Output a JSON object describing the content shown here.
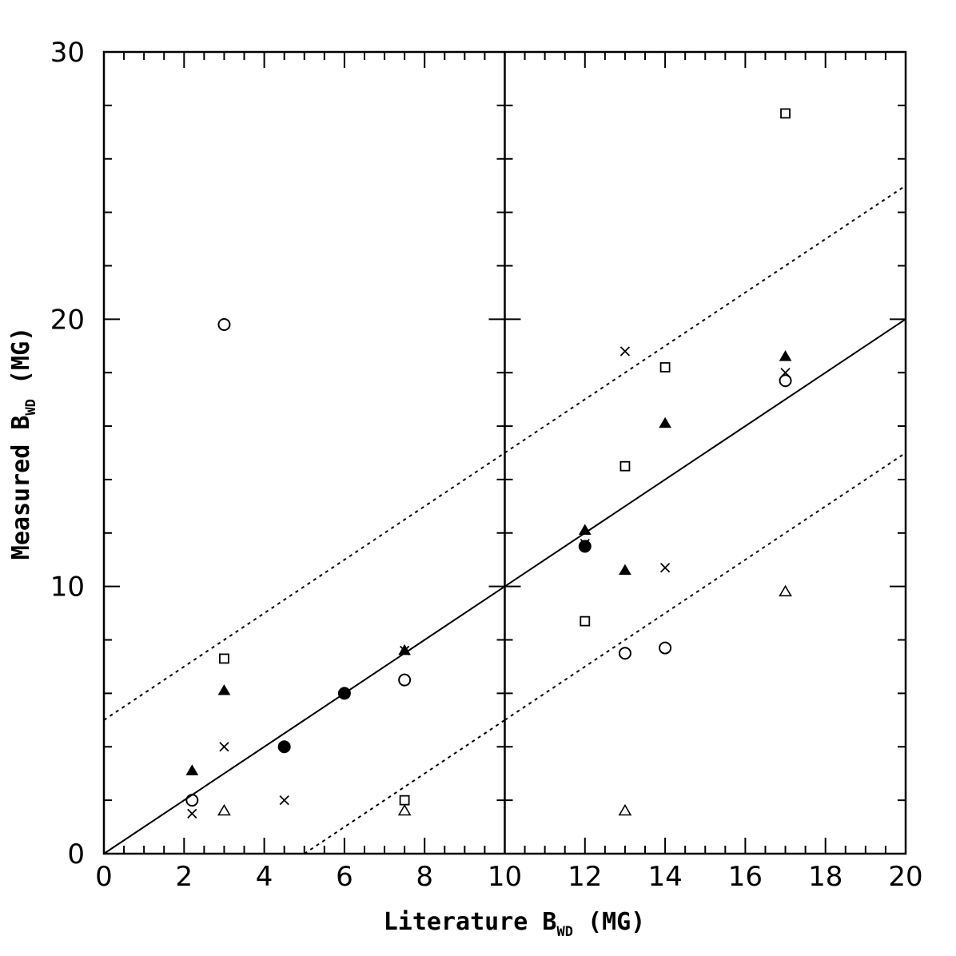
{
  "chart_data": {
    "type": "scatter",
    "xlabel": {
      "main": "Literature B",
      "sub": "WD",
      "unit": " (MG)"
    },
    "ylabel": {
      "main": "Measured B",
      "sub": "WD",
      "unit": " (MG)"
    },
    "xlim": [
      0,
      20
    ],
    "ylim": [
      0,
      30
    ],
    "panel_divider_x": 10,
    "x_ticks": [
      0,
      2,
      4,
      6,
      8,
      10,
      12,
      14,
      16,
      18,
      20
    ],
    "x_tick_labels": [
      "0",
      "2",
      "4",
      "6",
      "8",
      "10",
      "12",
      "14",
      "16",
      "18",
      "20"
    ],
    "y_ticks": [
      0,
      10,
      20,
      30
    ],
    "y_tick_labels": [
      "0",
      "10",
      "20",
      "30"
    ],
    "grid": false,
    "lines": [
      {
        "style": "solid",
        "points": [
          [
            0,
            0
          ],
          [
            20,
            20
          ]
        ]
      },
      {
        "style": "dotted",
        "points": [
          [
            0,
            5
          ],
          [
            10,
            15
          ]
        ]
      },
      {
        "style": "dotted",
        "points": [
          [
            5,
            0
          ],
          [
            10,
            5
          ]
        ]
      },
      {
        "style": "dotted",
        "points": [
          [
            10,
            15
          ],
          [
            20,
            25
          ]
        ]
      },
      {
        "style": "dotted",
        "points": [
          [
            10,
            5
          ],
          [
            20,
            15
          ]
        ]
      }
    ],
    "series": [
      {
        "marker": "open-circle",
        "points": [
          [
            2.2,
            2.0
          ],
          [
            3.0,
            19.8
          ],
          [
            7.5,
            6.5
          ],
          [
            13.0,
            7.5
          ],
          [
            14.0,
            7.7
          ],
          [
            17.0,
            17.7
          ]
        ]
      },
      {
        "marker": "filled-circle",
        "points": [
          [
            4.5,
            4.0
          ],
          [
            6.0,
            6.0
          ],
          [
            12.0,
            11.5
          ]
        ]
      },
      {
        "marker": "filled-triangle",
        "points": [
          [
            2.2,
            3.1
          ],
          [
            3.0,
            6.1
          ],
          [
            7.5,
            7.6
          ],
          [
            12.0,
            12.1
          ],
          [
            13.0,
            10.6
          ],
          [
            14.0,
            16.1
          ],
          [
            17.0,
            18.6
          ]
        ]
      },
      {
        "marker": "open-triangle",
        "points": [
          [
            3.0,
            1.6
          ],
          [
            7.5,
            1.6
          ],
          [
            13.0,
            1.6
          ],
          [
            17.0,
            9.8
          ]
        ]
      },
      {
        "marker": "open-square",
        "points": [
          [
            3.0,
            7.3
          ],
          [
            7.5,
            2.0
          ],
          [
            12.0,
            8.7
          ],
          [
            13.0,
            14.5
          ],
          [
            14.0,
            18.2
          ],
          [
            17.0,
            27.7
          ]
        ]
      },
      {
        "marker": "cross",
        "points": [
          [
            2.2,
            1.5
          ],
          [
            3.0,
            4.0
          ],
          [
            4.5,
            2.0
          ],
          [
            7.5,
            7.6
          ],
          [
            12.0,
            11.6
          ],
          [
            13.0,
            18.8
          ],
          [
            14.0,
            10.7
          ],
          [
            17.0,
            18.0
          ]
        ]
      }
    ]
  }
}
